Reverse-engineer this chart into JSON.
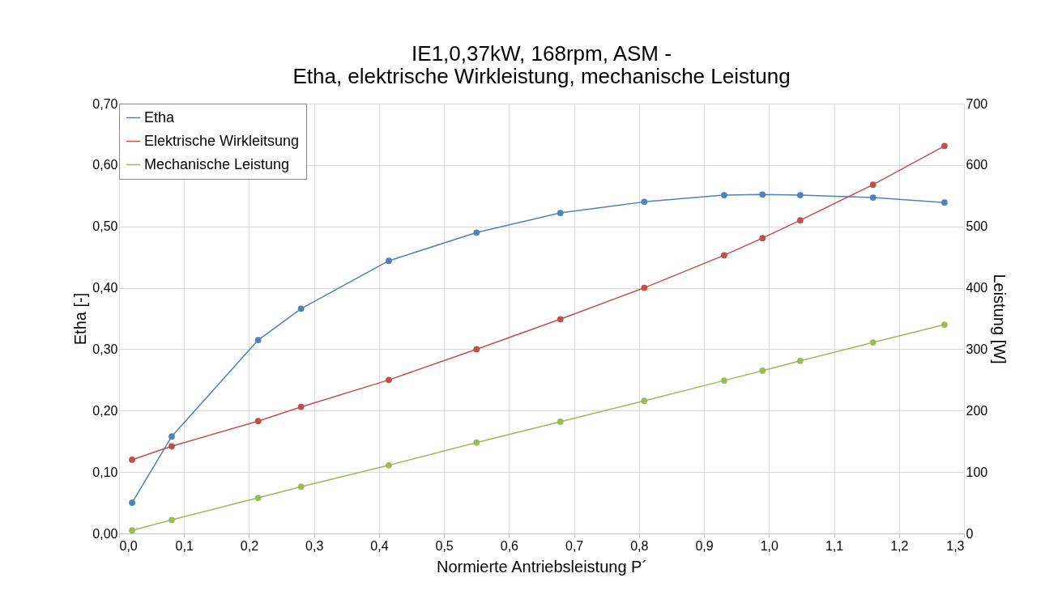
{
  "chart_data": {
    "type": "line",
    "title": "IE1,0,37kW, 168rpm, ASM -\nEtha, elektrische Wirkleistung, mechanische Leistung",
    "xlabel": "Normierte Antriebsleistung P´",
    "ylabel": "Etha [-]",
    "y2label": "Leistung [W]",
    "x": [
      0.02,
      0.081,
      0.214,
      0.28,
      0.415,
      0.55,
      0.679,
      0.808,
      0.931,
      0.99,
      1.048,
      1.16,
      1.27
    ],
    "series": [
      {
        "name": "Etha",
        "color": "#4f81bd",
        "values": [
          0.05,
          0.158,
          0.315,
          0.366,
          0.444,
          0.49,
          0.522,
          0.54,
          0.551,
          0.552,
          0.551,
          0.547,
          0.539
        ]
      },
      {
        "name": "Elektrische Wirkleitsung",
        "color": "#c0504d",
        "axis": "y2",
        "values": [
          120,
          142,
          183,
          206,
          250,
          300,
          349,
          400,
          453,
          481,
          510,
          568,
          631
        ]
      },
      {
        "name": "Mechanische Leistung",
        "color": "#9bbb59",
        "axis": "y2",
        "values": [
          5,
          22,
          58,
          76,
          111,
          148,
          182,
          216,
          249,
          265,
          281,
          311,
          340
        ]
      }
    ],
    "xlim": [
      0,
      1.3
    ],
    "xticks": [
      {
        "value": 0,
        "label": "0,0"
      },
      {
        "value": 0.1,
        "label": "0,1"
      },
      {
        "value": 0.2,
        "label": "0,2"
      },
      {
        "value": 0.3,
        "label": "0,3"
      },
      {
        "value": 0.4,
        "label": "0,4"
      },
      {
        "value": 0.5,
        "label": "0,5"
      },
      {
        "value": 0.6,
        "label": "0,6"
      },
      {
        "value": 0.7,
        "label": "0,7"
      },
      {
        "value": 0.8,
        "label": "0,8"
      },
      {
        "value": 0.9,
        "label": "0,9"
      },
      {
        "value": 1.0,
        "label": "1,0"
      },
      {
        "value": 1.1,
        "label": "1,1"
      },
      {
        "value": 1.2,
        "label": "1,2"
      },
      {
        "value": 1.3,
        "label": "1,3"
      }
    ],
    "ylim": [
      0,
      0.7
    ],
    "yticks": [
      {
        "value": 0,
        "label": "0,00"
      },
      {
        "value": 0.1,
        "label": "0,10"
      },
      {
        "value": 0.2,
        "label": "0,20"
      },
      {
        "value": 0.3,
        "label": "0,30"
      },
      {
        "value": 0.4,
        "label": "0,40"
      },
      {
        "value": 0.5,
        "label": "0,50"
      },
      {
        "value": 0.6,
        "label": "0,60"
      },
      {
        "value": 0.7,
        "label": "0,70"
      }
    ],
    "y2lim": [
      0,
      700
    ],
    "y2ticks": [
      0,
      100,
      200,
      300,
      400,
      500,
      600,
      700
    ],
    "grid": true,
    "legend": "top left",
    "marker": "circle",
    "line_style": "solid"
  }
}
